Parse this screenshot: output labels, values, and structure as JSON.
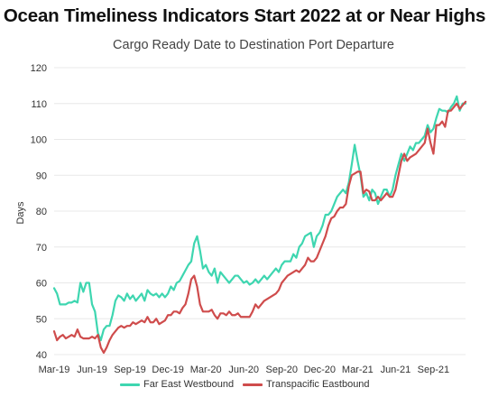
{
  "title": "Ocean Timeliness Indicators Start 2022 at or Near Highs",
  "subtitle": "Cargo Ready Date to Destination Port Departure",
  "colors": {
    "series_1": "#3ed6b0",
    "series_2": "#cf4c4c",
    "grid": "#e8e8e8"
  },
  "chart_data": {
    "type": "line",
    "title": "Cargo Ready Date to Destination Port Departure",
    "xlabel": "",
    "ylabel": "Days",
    "ylim": [
      40,
      120
    ],
    "yticks": [
      40,
      50,
      60,
      70,
      80,
      90,
      100,
      110,
      120
    ],
    "x_tick_labels": [
      "Mar-19",
      "Jun-19",
      "Sep-19",
      "Dec-19",
      "Mar-20",
      "Jun-20",
      "Sep-20",
      "Dec-20",
      "Mar-21",
      "Jun-21",
      "Sep-21"
    ],
    "x_tick_weeks": [
      0,
      13,
      26,
      39,
      52,
      65,
      78,
      91,
      104,
      117,
      130
    ],
    "week_unit": "weeks from Mar-19",
    "grid": "horizontal",
    "legend_position": "bottom",
    "series": [
      {
        "name": "Far East Westbound",
        "color": "#3ed6b0",
        "points": [
          [
            0,
            58.5
          ],
          [
            1,
            57
          ],
          [
            2,
            54
          ],
          [
            3,
            54
          ],
          [
            4,
            54
          ],
          [
            5,
            54.5
          ],
          [
            6,
            54.5
          ],
          [
            7,
            55
          ],
          [
            8,
            54.5
          ],
          [
            9,
            60
          ],
          [
            10,
            57.5
          ],
          [
            11,
            60
          ],
          [
            12,
            60
          ],
          [
            13,
            54
          ],
          [
            14,
            52
          ],
          [
            15,
            46
          ],
          [
            16,
            44
          ],
          [
            17,
            47
          ],
          [
            18,
            48
          ],
          [
            19,
            48
          ],
          [
            20,
            51
          ],
          [
            21,
            55
          ],
          [
            22,
            56.5
          ],
          [
            23,
            56
          ],
          [
            24,
            55
          ],
          [
            25,
            57
          ],
          [
            26,
            55.5
          ],
          [
            27,
            56.5
          ],
          [
            28,
            55
          ],
          [
            29,
            56
          ],
          [
            30,
            57
          ],
          [
            31,
            55
          ],
          [
            32,
            58
          ],
          [
            33,
            57
          ],
          [
            34,
            56.5
          ],
          [
            35,
            57
          ],
          [
            36,
            56
          ],
          [
            37,
            57
          ],
          [
            38,
            56
          ],
          [
            39,
            57
          ],
          [
            40,
            59
          ],
          [
            41,
            58
          ],
          [
            42,
            60
          ],
          [
            43,
            60.5
          ],
          [
            44,
            62
          ],
          [
            45,
            63.5
          ],
          [
            46,
            65
          ],
          [
            47,
            66
          ],
          [
            48,
            71
          ],
          [
            49,
            73
          ],
          [
            50,
            69
          ],
          [
            51,
            64
          ],
          [
            52,
            65
          ],
          [
            53,
            63
          ],
          [
            54,
            62
          ],
          [
            55,
            64
          ],
          [
            56,
            60
          ],
          [
            57,
            63
          ],
          [
            58,
            62
          ],
          [
            59,
            61
          ],
          [
            60,
            60
          ],
          [
            61,
            61
          ],
          [
            62,
            62
          ],
          [
            63,
            62
          ],
          [
            64,
            61
          ],
          [
            65,
            60
          ],
          [
            66,
            60.5
          ],
          [
            67,
            59.5
          ],
          [
            68,
            60
          ],
          [
            69,
            61
          ],
          [
            70,
            60
          ],
          [
            71,
            61
          ],
          [
            72,
            62
          ],
          [
            73,
            61
          ],
          [
            74,
            62
          ],
          [
            75,
            63
          ],
          [
            76,
            64
          ],
          [
            77,
            63
          ],
          [
            78,
            65
          ],
          [
            79,
            66
          ],
          [
            80,
            66
          ],
          [
            81,
            66
          ],
          [
            82,
            68
          ],
          [
            83,
            67
          ],
          [
            84,
            70
          ],
          [
            85,
            71
          ],
          [
            86,
            73
          ],
          [
            87,
            73.5
          ],
          [
            88,
            74
          ],
          [
            89,
            70
          ],
          [
            90,
            73
          ],
          [
            91,
            74
          ],
          [
            92,
            76
          ],
          [
            93,
            79
          ],
          [
            94,
            79
          ],
          [
            95,
            80
          ],
          [
            96,
            82
          ],
          [
            97,
            84
          ],
          [
            98,
            85
          ],
          [
            99,
            86
          ],
          [
            100,
            85
          ],
          [
            101,
            88
          ],
          [
            102,
            93
          ],
          [
            103,
            98.5
          ],
          [
            104,
            94
          ],
          [
            105,
            90
          ],
          [
            106,
            84
          ],
          [
            107,
            85
          ],
          [
            108,
            83
          ],
          [
            109,
            86
          ],
          [
            110,
            85
          ],
          [
            111,
            82
          ],
          [
            112,
            84
          ],
          [
            113,
            86
          ],
          [
            114,
            86
          ],
          [
            115,
            84
          ],
          [
            116,
            86
          ],
          [
            117,
            90
          ],
          [
            118,
            93
          ],
          [
            119,
            96
          ],
          [
            120,
            94
          ],
          [
            121,
            96
          ],
          [
            122,
            98
          ],
          [
            123,
            97
          ],
          [
            124,
            99
          ],
          [
            125,
            99
          ],
          [
            126,
            100
          ],
          [
            127,
            101
          ],
          [
            128,
            104
          ],
          [
            129,
            102
          ],
          [
            130,
            103
          ],
          [
            131,
            106
          ],
          [
            132,
            108.5
          ],
          [
            133,
            108
          ],
          [
            134,
            108
          ],
          [
            135,
            107.5
          ],
          [
            136,
            109
          ],
          [
            137,
            110
          ],
          [
            138,
            112
          ],
          [
            139,
            108
          ],
          [
            140,
            110
          ],
          [
            141,
            110
          ]
        ]
      },
      {
        "name": "Transpacific Eastbound",
        "color": "#cf4c4c",
        "points": [
          [
            0,
            46.5
          ],
          [
            1,
            44
          ],
          [
            2,
            45
          ],
          [
            3,
            45.5
          ],
          [
            4,
            44.5
          ],
          [
            5,
            45
          ],
          [
            6,
            45.5
          ],
          [
            7,
            45
          ],
          [
            8,
            47
          ],
          [
            9,
            45
          ],
          [
            10,
            44.5
          ],
          [
            11,
            44.5
          ],
          [
            12,
            44.5
          ],
          [
            13,
            45
          ],
          [
            14,
            44.5
          ],
          [
            15,
            45.5
          ],
          [
            16,
            42
          ],
          [
            17,
            40.5
          ],
          [
            18,
            42
          ],
          [
            19,
            44
          ],
          [
            20,
            45.5
          ],
          [
            21,
            46.5
          ],
          [
            22,
            47.5
          ],
          [
            23,
            48
          ],
          [
            24,
            47.5
          ],
          [
            25,
            48
          ],
          [
            26,
            48
          ],
          [
            27,
            49
          ],
          [
            28,
            48.5
          ],
          [
            29,
            49
          ],
          [
            30,
            49.5
          ],
          [
            31,
            49
          ],
          [
            32,
            50.5
          ],
          [
            33,
            49
          ],
          [
            34,
            49
          ],
          [
            35,
            50
          ],
          [
            36,
            48.5
          ],
          [
            37,
            49
          ],
          [
            38,
            49.5
          ],
          [
            39,
            51
          ],
          [
            40,
            51
          ],
          [
            41,
            52
          ],
          [
            42,
            52
          ],
          [
            43,
            51.5
          ],
          [
            44,
            53
          ],
          [
            45,
            54
          ],
          [
            46,
            57
          ],
          [
            47,
            61
          ],
          [
            48,
            62
          ],
          [
            49,
            59
          ],
          [
            50,
            54
          ],
          [
            51,
            52
          ],
          [
            52,
            52
          ],
          [
            53,
            52
          ],
          [
            54,
            52.5
          ],
          [
            55,
            51
          ],
          [
            56,
            50
          ],
          [
            57,
            51.5
          ],
          [
            58,
            51.5
          ],
          [
            59,
            51
          ],
          [
            60,
            52
          ],
          [
            61,
            51
          ],
          [
            62,
            51
          ],
          [
            63,
            51.5
          ],
          [
            64,
            50.5
          ],
          [
            65,
            50.5
          ],
          [
            66,
            50.5
          ],
          [
            67,
            50.5
          ],
          [
            68,
            52
          ],
          [
            69,
            54
          ],
          [
            70,
            53
          ],
          [
            71,
            54
          ],
          [
            72,
            55
          ],
          [
            73,
            55.5
          ],
          [
            74,
            56
          ],
          [
            75,
            56.5
          ],
          [
            76,
            57
          ],
          [
            77,
            58
          ],
          [
            78,
            60
          ],
          [
            79,
            61
          ],
          [
            80,
            62
          ],
          [
            81,
            62.5
          ],
          [
            82,
            63
          ],
          [
            83,
            63.5
          ],
          [
            84,
            63
          ],
          [
            85,
            64
          ],
          [
            86,
            65
          ],
          [
            87,
            67
          ],
          [
            88,
            66
          ],
          [
            89,
            66
          ],
          [
            90,
            67
          ],
          [
            91,
            69
          ],
          [
            92,
            71
          ],
          [
            93,
            73
          ],
          [
            94,
            76
          ],
          [
            95,
            78
          ],
          [
            96,
            78.5
          ],
          [
            97,
            80
          ],
          [
            98,
            81
          ],
          [
            99,
            81
          ],
          [
            100,
            82
          ],
          [
            101,
            87
          ],
          [
            102,
            90
          ],
          [
            103,
            90.5
          ],
          [
            104,
            91
          ],
          [
            105,
            91
          ],
          [
            106,
            85
          ],
          [
            107,
            86
          ],
          [
            108,
            85.5
          ],
          [
            109,
            83
          ],
          [
            110,
            83
          ],
          [
            111,
            84
          ],
          [
            112,
            83
          ],
          [
            113,
            84
          ],
          [
            114,
            85
          ],
          [
            115,
            84
          ],
          [
            116,
            84
          ],
          [
            117,
            86
          ],
          [
            118,
            90
          ],
          [
            119,
            94
          ],
          [
            120,
            96
          ],
          [
            121,
            94
          ],
          [
            122,
            95
          ],
          [
            123,
            95.5
          ],
          [
            124,
            96
          ],
          [
            125,
            97
          ],
          [
            126,
            98
          ],
          [
            127,
            99
          ],
          [
            128,
            103
          ],
          [
            129,
            99
          ],
          [
            130,
            96
          ],
          [
            131,
            104
          ],
          [
            132,
            104
          ],
          [
            133,
            105
          ],
          [
            134,
            103.5
          ],
          [
            135,
            108
          ],
          [
            136,
            108
          ],
          [
            137,
            109
          ],
          [
            138,
            110
          ],
          [
            139,
            108.5
          ],
          [
            140,
            109.5
          ],
          [
            141,
            110.5
          ]
        ]
      }
    ]
  }
}
